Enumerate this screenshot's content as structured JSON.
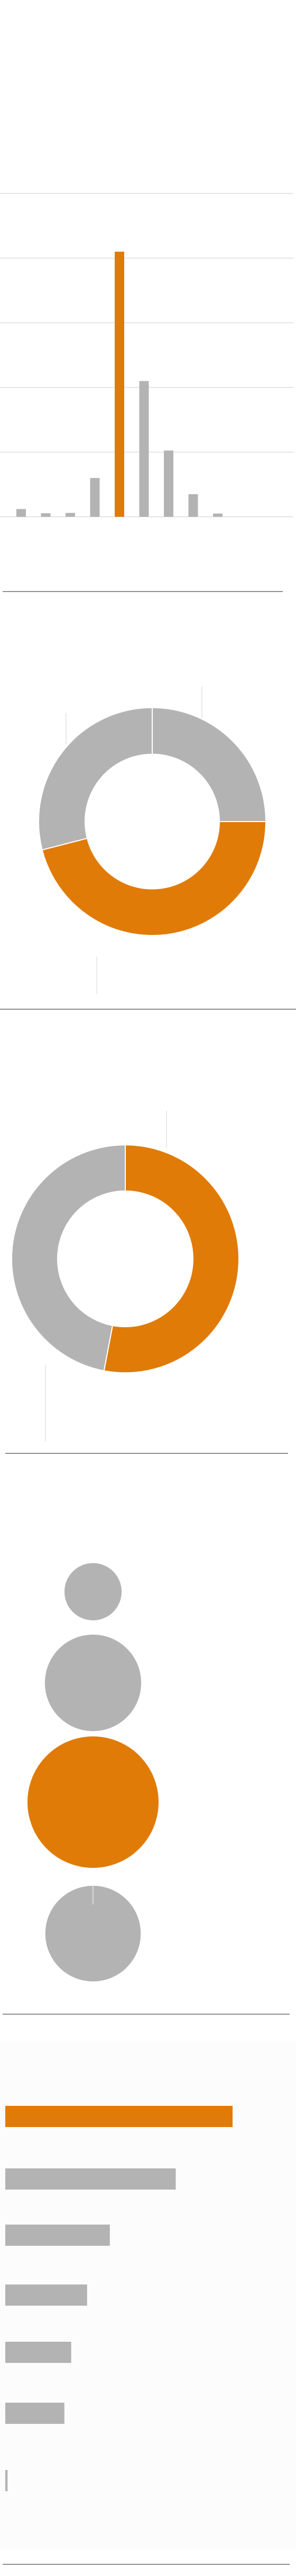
{
  "colors": {
    "highlight": "#E07B07",
    "neutral": "#B3B3B3",
    "grid": "#DEDEDE",
    "divider": "#8F8F8F",
    "leader": "#E3E3E3",
    "panel_bg": "#FCFCFC"
  },
  "chart_data": [
    {
      "type": "bar",
      "orientation": "vertical",
      "categories": [
        "",
        "",
        "",
        "",
        "",
        "",
        "",
        "",
        ""
      ],
      "values": [
        2.4,
        1.1,
        1.2,
        12.0,
        82.0,
        42.0,
        20.5,
        7.0,
        1.0
      ],
      "highlight_index": 4,
      "ylim": [
        0,
        100
      ],
      "grid": true,
      "title": "",
      "xlabel": "",
      "ylabel": ""
    },
    {
      "type": "pie",
      "variant": "donut",
      "start_angle_deg": 0,
      "values": [
        25,
        46,
        29
      ],
      "highlight_index": 1,
      "labels": [
        "",
        "",
        ""
      ]
    },
    {
      "type": "pie",
      "variant": "donut",
      "start_angle_deg": 0,
      "values": [
        53,
        47
      ],
      "highlight_index": 0,
      "labels": [
        "",
        ""
      ]
    },
    {
      "type": "scatter",
      "variant": "proportional-circles",
      "values": [
        19,
        54,
        100,
        53
      ],
      "highlight_index": 2,
      "categories": [
        "",
        "",
        "",
        ""
      ]
    },
    {
      "type": "bar",
      "orientation": "horizontal",
      "categories": [
        "",
        "",
        "",
        "",
        "",
        "",
        ""
      ],
      "values": [
        100,
        75,
        46,
        36,
        29,
        26,
        1
      ],
      "highlight_index": 0,
      "xlim": [
        0,
        100
      ],
      "grid": false
    }
  ]
}
